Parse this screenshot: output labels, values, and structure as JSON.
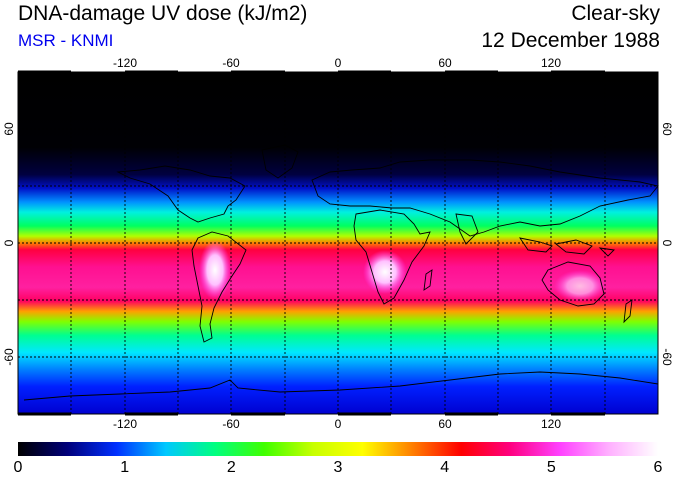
{
  "header": {
    "title": "DNA-damage UV dose (kJ/m2)",
    "subtitle": "MSR - KNMI",
    "condition": "Clear-sky",
    "date": "12 December 1988"
  },
  "map": {
    "lon_ticks": [
      "-120",
      "-60",
      "0",
      "60",
      "120"
    ],
    "lat_ticks": [
      "60",
      "0",
      "-60"
    ],
    "lon_range": [
      -180,
      180
    ],
    "lat_range": [
      -90,
      90
    ]
  },
  "colorbar": {
    "min": 0,
    "max": 6,
    "tick_labels": [
      "0",
      "1",
      "2",
      "3",
      "4",
      "5",
      "6"
    ],
    "colors": [
      "#000000",
      "#00007a",
      "#0030ff",
      "#00c8ff",
      "#00ff80",
      "#40ff00",
      "#c8ff00",
      "#ffff00",
      "#ff8000",
      "#ff0000",
      "#ff0080",
      "#ff40ff",
      "#ffb0ff",
      "#ffffff"
    ]
  }
}
